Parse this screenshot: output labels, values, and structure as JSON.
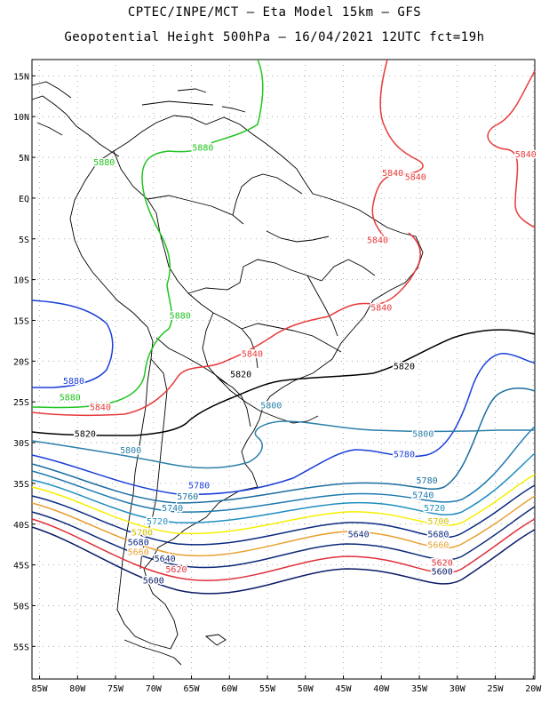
{
  "title": {
    "line1": "CPTEC/INPE/MCT –  Eta Model 15km – GFS",
    "line2": "Geopotential Height 500hPa – 16/04/2021 12UTC fct=19h"
  },
  "axes": {
    "lat_labels": [
      "15N",
      "10N",
      "5N",
      "EQ",
      "5S",
      "10S",
      "15S",
      "20S",
      "25S",
      "30S",
      "35S",
      "40S",
      "45S",
      "50S",
      "55S"
    ],
    "lon_labels": [
      "85W",
      "80W",
      "75W",
      "70W",
      "65W",
      "60W",
      "55W",
      "50W",
      "45W",
      "40W",
      "35W",
      "30W",
      "25W",
      "20W"
    ]
  },
  "colors": {
    "c5600": "#0b1a66",
    "c5620": "#e0303a",
    "c5640": "#0d2a78",
    "c5660": "#e8a030",
    "c5680": "#0a2a80",
    "c5700": "#f5f000",
    "c5720": "#1f8fc0",
    "c5740": "#1e7ab0",
    "c5760": "#1a6da0",
    "c5780": "#1a3fd8",
    "c5800": "#2c80a8",
    "c5820": "#000000",
    "c5840": "#e83a3a",
    "c5860": "#22c422",
    "c5880": "#1a3fd8"
  },
  "contour_labels": [
    {
      "text": "5880",
      "color": "#22c422",
      "lon": -63.5,
      "lat": 5.8
    },
    {
      "text": "5880",
      "color": "#22c422",
      "lon": -76.5,
      "lat": 4.0
    },
    {
      "text": "5880",
      "color": "#22c422",
      "lon": -66.5,
      "lat": -14.8
    },
    {
      "text": "5880",
      "color": "#1a3fd8",
      "lon": -80.5,
      "lat": -22.8
    },
    {
      "text": "5880",
      "color": "#22c422",
      "lon": -81.0,
      "lat": -24.8
    },
    {
      "text": "5840",
      "color": "#e83a3a",
      "lon": -38.5,
      "lat": 2.7
    },
    {
      "text": "5840",
      "color": "#e83a3a",
      "lon": -35.5,
      "lat": 2.2
    },
    {
      "text": "5840",
      "color": "#e83a3a",
      "lon": -21.0,
      "lat": 5.0
    },
    {
      "text": "5840",
      "color": "#e83a3a",
      "lon": -40.5,
      "lat": -5.5
    },
    {
      "text": "5840",
      "color": "#e83a3a",
      "lon": -40.0,
      "lat": -13.8
    },
    {
      "text": "5840",
      "color": "#e83a3a",
      "lon": -57.0,
      "lat": -19.5
    },
    {
      "text": "5840",
      "color": "#e83a3a",
      "lon": -77.0,
      "lat": -26.0
    },
    {
      "text": "5820",
      "color": "#000000",
      "lon": -37.0,
      "lat": -21.0
    },
    {
      "text": "5820",
      "color": "#000000",
      "lon": -58.5,
      "lat": -22.0
    },
    {
      "text": "5820",
      "color": "#000000",
      "lon": -79.0,
      "lat": -29.3
    },
    {
      "text": "5800",
      "color": "#2c80a8",
      "lon": -54.5,
      "lat": -25.8
    },
    {
      "text": "5800",
      "color": "#2c80a8",
      "lon": -34.5,
      "lat": -29.3
    },
    {
      "text": "5800",
      "color": "#2c80a8",
      "lon": -73.0,
      "lat": -31.3
    },
    {
      "text": "5780",
      "color": "#1a3fd8",
      "lon": -37.0,
      "lat": -31.8
    },
    {
      "text": "5780",
      "color": "#1a6da0",
      "lon": -34.0,
      "lat": -35.0
    },
    {
      "text": "5780",
      "color": "#1a3fd8",
      "lon": -64.0,
      "lat": -35.6
    },
    {
      "text": "5760",
      "color": "#1a6da0",
      "lon": -65.5,
      "lat": -37.0
    },
    {
      "text": "5740",
      "color": "#1e7ab0",
      "lon": -34.5,
      "lat": -36.8
    },
    {
      "text": "5740",
      "color": "#1e7ab0",
      "lon": -67.5,
      "lat": -38.4
    },
    {
      "text": "5720",
      "color": "#1f8fc0",
      "lon": -33.0,
      "lat": -38.4
    },
    {
      "text": "5720",
      "color": "#1f8fc0",
      "lon": -69.5,
      "lat": -40.0
    },
    {
      "text": "5700",
      "color": "#d0c000",
      "lon": -32.5,
      "lat": -40.0
    },
    {
      "text": "5700",
      "color": "#d0c000",
      "lon": -71.5,
      "lat": -41.4
    },
    {
      "text": "5680",
      "color": "#0a2a80",
      "lon": -32.5,
      "lat": -41.6
    },
    {
      "text": "5680",
      "color": "#0a2a80",
      "lon": -72.0,
      "lat": -42.6
    },
    {
      "text": "5660",
      "color": "#e8a030",
      "lon": -32.5,
      "lat": -42.9
    },
    {
      "text": "5660",
      "color": "#e8a030",
      "lon": -72.0,
      "lat": -43.8
    },
    {
      "text": "5640",
      "color": "#0d2a78",
      "lon": -43.0,
      "lat": -41.6
    },
    {
      "text": "5640",
      "color": "#0d2a78",
      "lon": -68.5,
      "lat": -44.6
    },
    {
      "text": "5620",
      "color": "#e0303a",
      "lon": -32.0,
      "lat": -45.1
    },
    {
      "text": "5620",
      "color": "#e0303a",
      "lon": -67.0,
      "lat": -45.9
    },
    {
      "text": "5600",
      "color": "#0b1a66",
      "lon": -32.0,
      "lat": -46.2
    },
    {
      "text": "5600",
      "color": "#0b1a66",
      "lon": -70.0,
      "lat": -47.3
    }
  ]
}
